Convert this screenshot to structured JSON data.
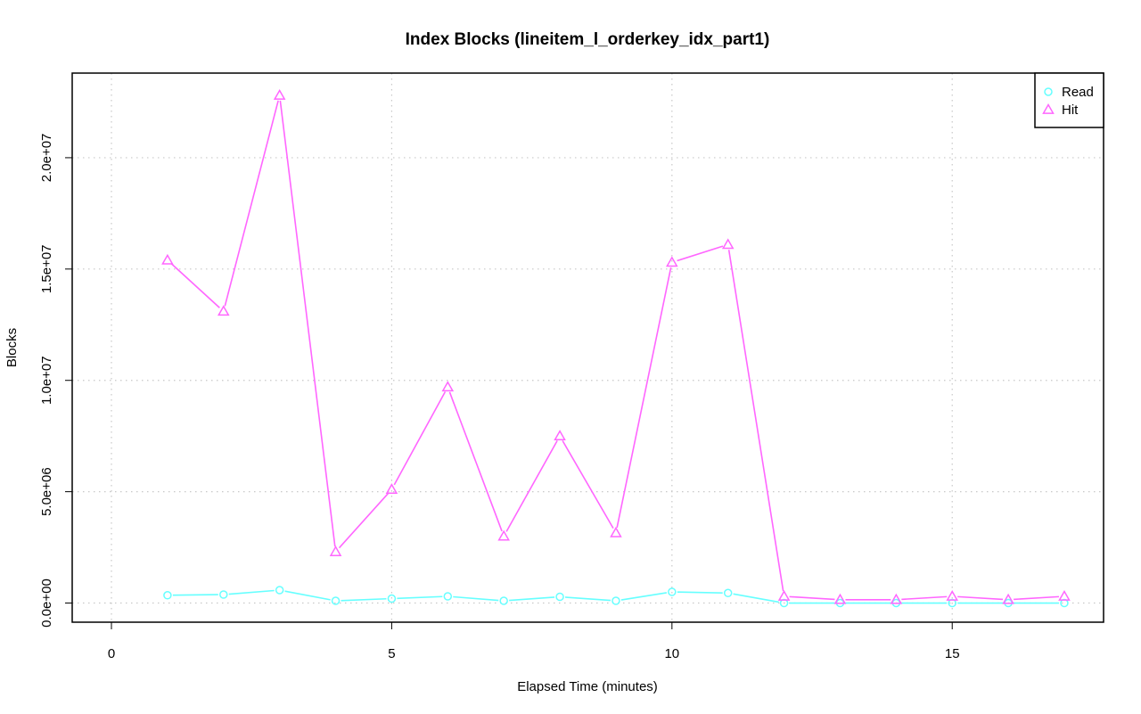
{
  "chart_data": {
    "type": "line",
    "title": "Index Blocks (lineitem_l_orderkey_idx_part1)",
    "xlabel": "Elapsed Time (minutes)",
    "ylabel": "Blocks",
    "xlim": [
      -0.7,
      17.7
    ],
    "ylim": [
      -860000,
      23800000
    ],
    "xticks": [
      0,
      5,
      10,
      15
    ],
    "xtick_labels": [
      "0",
      "5",
      "10",
      "15"
    ],
    "yticks": [
      0,
      5000000,
      10000000,
      15000000,
      20000000
    ],
    "ytick_labels": [
      "0.0e+00",
      "5.0e+06",
      "1.0e+07",
      "1.5e+07",
      "2.0e+07"
    ],
    "grid": true,
    "legend_position": "top-right",
    "x": [
      1,
      2,
      3,
      4,
      5,
      6,
      7,
      8,
      9,
      10,
      11,
      12,
      13,
      14,
      15,
      16,
      17
    ],
    "series": [
      {
        "name": "Read",
        "color": "#66ffff",
        "marker": "circle",
        "values": [
          350000,
          380000,
          580000,
          100000,
          200000,
          300000,
          100000,
          280000,
          100000,
          500000,
          450000,
          0,
          0,
          0,
          0,
          0,
          0
        ]
      },
      {
        "name": "Hit",
        "color": "#ff66ff",
        "marker": "triangle",
        "values": [
          15400000,
          13100000,
          22800000,
          2300000,
          5100000,
          9700000,
          3000000,
          7500000,
          3150000,
          15300000,
          16100000,
          300000,
          150000,
          150000,
          300000,
          150000,
          300000
        ]
      }
    ]
  }
}
